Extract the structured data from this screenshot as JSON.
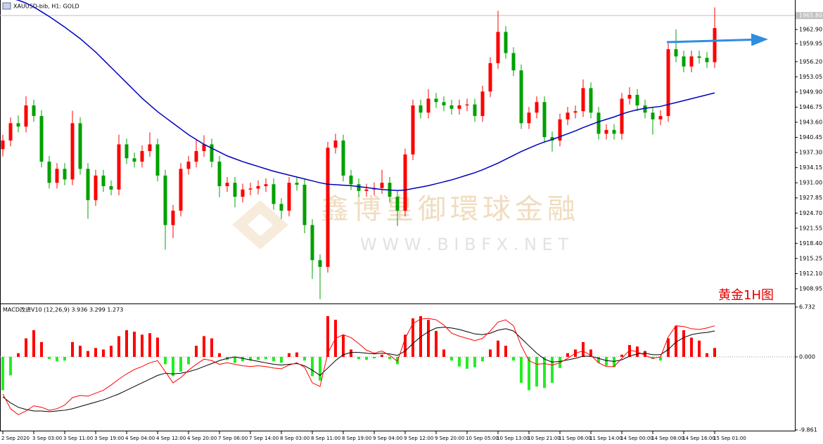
{
  "chart_data": [
    {
      "type": "candlestick",
      "title": "XAUUSD-bib, H1: GOLD",
      "annotation": "黄金1H图",
      "watermark": [
        "鑫博皇御環球金融",
        "W W W . B I B F X . N E T"
      ],
      "ylim": [
        1905.88,
        1969.04
      ],
      "yticks": [
        {
          "value": 1962.9,
          "label": "1962.90"
        },
        1959.95,
        {
          "value": 1956.2,
          "label": "1956.20"
        },
        1953.05,
        {
          "value": 1949.9,
          "label": "1949.90"
        },
        1946.75,
        {
          "value": 1943.6,
          "label": "1943.60"
        },
        1940.45,
        {
          "value": 1937.3,
          "label": "1937.30"
        },
        1934.15,
        {
          "value": 1931,
          "label": "1931.00"
        },
        1927.85,
        {
          "value": 1924.7,
          "label": "1924.70"
        },
        1921.55,
        {
          "value": 1918.4,
          "label": "1918.40"
        },
        1915.25,
        {
          "value": 1912.1,
          "label": "1912.10"
        },
        1908.95
      ],
      "current_price": {
        "value": 1965.8,
        "label": "1965.80"
      },
      "up_color": "#ff0000",
      "down_color": "#00a000",
      "xlabels": [
        "2 Sep 2020",
        "3 Sep 03:00",
        "3 Sep 11:00",
        "3 Sep 19:00",
        "4 Sep 04:00",
        "4 Sep 12:00",
        "4 Sep 20:00",
        "7 Sep 06:00",
        "7 Sep 14:00",
        "8 Sep 03:00",
        "8 Sep 11:00",
        "8 Sep 19:00",
        "9 Sep 04:00",
        "9 Sep 12:00",
        "9 Sep 20:00",
        "10 Sep 05:00",
        "10 Sep 13:00",
        "10 Sep 21:00",
        "11 Sep 06:00",
        "11 Sep 14:00",
        "14 Sep 00:00",
        "14 Sep 08:00",
        "14 Sep 16:00",
        "15 Sep 01:00"
      ],
      "candles": [
        [
          1938.0,
          1941.0,
          1936.5,
          1939.8
        ],
        [
          1939.8,
          1944.6,
          1938.6,
          1943.4
        ],
        [
          1943.4,
          1945.0,
          1941.5,
          1942.7
        ],
        [
          1942.7,
          1949.0,
          1941.5,
          1947.1
        ],
        [
          1947.1,
          1948.3,
          1943.7,
          1944.9
        ],
        [
          1944.9,
          1946.1,
          1934.2,
          1935.4
        ],
        [
          1935.4,
          1936.6,
          1929.8,
          1931.0
        ],
        [
          1931.0,
          1935.1,
          1929.8,
          1933.9
        ],
        [
          1933.9,
          1935.1,
          1930.5,
          1931.7
        ],
        [
          1931.7,
          1946.0,
          1930.5,
          1943.4
        ],
        [
          1943.4,
          1944.6,
          1932.7,
          1933.9
        ],
        [
          1933.9,
          1935.1,
          1923.5,
          1927.4
        ],
        [
          1927.4,
          1933.7,
          1926.2,
          1932.5
        ],
        [
          1932.5,
          1933.7,
          1929.1,
          1930.3
        ],
        [
          1930.3,
          1931.5,
          1928.4,
          1929.6
        ],
        [
          1929.6,
          1941.0,
          1928.4,
          1939.0
        ],
        [
          1939.0,
          1940.2,
          1934.9,
          1936.1
        ],
        [
          1936.1,
          1937.3,
          1934.2,
          1935.4
        ],
        [
          1935.4,
          1938.8,
          1934.2,
          1937.6
        ],
        [
          1937.6,
          1941.5,
          1936.4,
          1939.0
        ],
        [
          1939.0,
          1940.2,
          1931.3,
          1932.5
        ],
        [
          1932.5,
          1933.7,
          1917.1,
          1922.2
        ],
        [
          1922.2,
          1926.4,
          1919.5,
          1925.2
        ],
        [
          1925.2,
          1935.1,
          1924.0,
          1933.9
        ],
        [
          1933.9,
          1936.6,
          1932.7,
          1935.4
        ],
        [
          1935.4,
          1940.0,
          1934.2,
          1937.6
        ],
        [
          1937.6,
          1940.9,
          1936.4,
          1939.0
        ],
        [
          1939.0,
          1940.2,
          1934.2,
          1935.4
        ],
        [
          1935.4,
          1936.6,
          1928.0,
          1930.3
        ],
        [
          1930.3,
          1932.2,
          1929.1,
          1931.0
        ],
        [
          1931.0,
          1932.2,
          1925.9,
          1928.1
        ],
        [
          1928.1,
          1930.8,
          1926.9,
          1929.6
        ],
        [
          1929.6,
          1931.0,
          1928.4,
          1929.8
        ],
        [
          1929.8,
          1931.5,
          1928.6,
          1930.3
        ],
        [
          1930.3,
          1931.9,
          1929.1,
          1930.7
        ],
        [
          1930.7,
          1931.9,
          1925.4,
          1926.6
        ],
        [
          1926.6,
          1927.8,
          1923.5,
          1925.2
        ],
        [
          1925.2,
          1932.2,
          1924.0,
          1931.0
        ],
        [
          1931.0,
          1932.2,
          1929.4,
          1930.6
        ],
        [
          1930.6,
          1931.8,
          1920.5,
          1922.2
        ],
        [
          1922.2,
          1923.4,
          1911.0,
          1914.9
        ],
        [
          1914.9,
          1916.1,
          1906.8,
          1913.5
        ],
        [
          1913.5,
          1939.5,
          1912.3,
          1938.3
        ],
        [
          1938.3,
          1941.2,
          1937.1,
          1939.8
        ],
        [
          1939.8,
          1941.0,
          1931.3,
          1932.5
        ],
        [
          1932.5,
          1933.7,
          1929.5,
          1930.7
        ],
        [
          1930.7,
          1931.9,
          1928.1,
          1929.3
        ],
        [
          1929.3,
          1930.8,
          1928.1,
          1929.6
        ],
        [
          1929.6,
          1931.1,
          1928.4,
          1929.9
        ],
        [
          1929.9,
          1933.7,
          1928.7,
          1931.0
        ],
        [
          1931.0,
          1932.2,
          1926.9,
          1928.1
        ],
        [
          1928.1,
          1929.3,
          1922.0,
          1925.2
        ],
        [
          1925.2,
          1938.1,
          1924.0,
          1936.9
        ],
        [
          1936.9,
          1948.3,
          1935.7,
          1947.1
        ],
        [
          1947.1,
          1948.3,
          1944.4,
          1945.6
        ],
        [
          1945.6,
          1950.5,
          1944.4,
          1948.5
        ],
        [
          1948.5,
          1949.7,
          1946.6,
          1947.8
        ],
        [
          1947.8,
          1949.0,
          1945.9,
          1947.1
        ],
        [
          1947.1,
          1948.3,
          1945.2,
          1946.4
        ],
        [
          1946.4,
          1948.3,
          1945.2,
          1947.1
        ],
        [
          1947.1,
          1948.5,
          1945.9,
          1947.3
        ],
        [
          1947.3,
          1948.5,
          1943.7,
          1944.9
        ],
        [
          1944.9,
          1951.2,
          1943.7,
          1950.0
        ],
        [
          1950.0,
          1957.1,
          1948.8,
          1955.9
        ],
        [
          1955.9,
          1966.8,
          1954.7,
          1962.4
        ],
        [
          1962.4,
          1963.6,
          1956.8,
          1958.0
        ],
        [
          1958.0,
          1959.2,
          1953.2,
          1954.4
        ],
        [
          1954.4,
          1955.6,
          1942.2,
          1943.4
        ],
        [
          1943.4,
          1946.8,
          1942.2,
          1945.6
        ],
        [
          1945.6,
          1949.0,
          1944.4,
          1947.8
        ],
        [
          1947.8,
          1949.0,
          1939.3,
          1940.5
        ],
        [
          1940.5,
          1941.7,
          1937.5,
          1939.8
        ],
        [
          1939.8,
          1945.4,
          1938.6,
          1944.2
        ],
        [
          1944.2,
          1946.8,
          1943.0,
          1945.6
        ],
        [
          1945.6,
          1947.1,
          1944.4,
          1945.9
        ],
        [
          1945.9,
          1952.5,
          1944.7,
          1950.7
        ],
        [
          1950.7,
          1951.9,
          1944.4,
          1945.6
        ],
        [
          1945.6,
          1946.8,
          1940.0,
          1941.2
        ],
        [
          1941.2,
          1943.2,
          1940.0,
          1942.0
        ],
        [
          1942.0,
          1943.2,
          1940.0,
          1941.2
        ],
        [
          1941.2,
          1949.7,
          1940.0,
          1948.5
        ],
        [
          1948.5,
          1950.9,
          1947.3,
          1949.3
        ],
        [
          1949.3,
          1950.5,
          1945.9,
          1947.1
        ],
        [
          1947.1,
          1948.3,
          1944.4,
          1945.6
        ],
        [
          1945.6,
          1946.8,
          1941.0,
          1944.2
        ],
        [
          1944.2,
          1946.1,
          1943.0,
          1944.9
        ],
        [
          1944.9,
          1960.0,
          1943.7,
          1958.8
        ],
        [
          1958.8,
          1962.9,
          1956.1,
          1957.3
        ],
        [
          1957.3,
          1958.5,
          1954.0,
          1955.2
        ],
        [
          1955.2,
          1958.5,
          1954.0,
          1957.3
        ],
        [
          1957.3,
          1958.5,
          1955.8,
          1957.0
        ],
        [
          1957.0,
          1958.2,
          1954.9,
          1956.1
        ],
        [
          1956.1,
          1967.5,
          1954.9,
          1963.2
        ]
      ],
      "series": [
        {
          "color": "#0000c0",
          "values": [
            1969.8,
            1969.4,
            1969.0,
            1968.4,
            1967.6,
            1966.6,
            1965.6,
            1964.5,
            1963.4,
            1962.2,
            1961.0,
            1959.6,
            1958.2,
            1956.6,
            1955.0,
            1953.4,
            1951.8,
            1950.2,
            1948.6,
            1947.2,
            1945.8,
            1944.6,
            1943.4,
            1942.2,
            1941.0,
            1940.0,
            1939.0,
            1938.2,
            1937.4,
            1936.6,
            1936.0,
            1935.4,
            1934.9,
            1934.4,
            1933.9,
            1933.4,
            1933.0,
            1932.6,
            1932.2,
            1931.8,
            1931.4,
            1931.0,
            1930.7,
            1930.6,
            1930.5,
            1930.4,
            1930.2,
            1930.0,
            1929.8,
            1929.6,
            1929.5,
            1929.4,
            1929.5,
            1929.8,
            1930.1,
            1930.4,
            1930.8,
            1931.2,
            1931.6,
            1932.1,
            1932.6,
            1933.1,
            1933.7,
            1934.4,
            1935.1,
            1935.9,
            1936.7,
            1937.5,
            1938.2,
            1938.9,
            1939.5,
            1940.0,
            1940.6,
            1941.2,
            1941.8,
            1942.5,
            1943.1,
            1943.7,
            1944.2,
            1944.7,
            1945.3,
            1945.8,
            1946.2,
            1946.5,
            1946.7,
            1946.9,
            1947.3,
            1947.7,
            1948.1,
            1948.5,
            1948.9,
            1949.3,
            1949.7
          ]
        }
      ]
    },
    {
      "type": "macd",
      "title": "MACD改进V10 (12,26,9) 3.936 3.299 1.273",
      "ylim": [
        -9.861,
        6.732
      ],
      "yticks": [
        6.732,
        {
          "value": 0,
          "label": "0.000"
        },
        -9.861
      ],
      "positive_color": "#ff0000",
      "negative_color": "#22ee22",
      "values": [
        -4.5,
        -2.5,
        0.5,
        2.5,
        3.6,
        2.0,
        -0.3,
        -0.6,
        -0.5,
        2.0,
        1.5,
        0.8,
        1.2,
        1.0,
        1.5,
        2.8,
        3.6,
        3.4,
        3.0,
        3.2,
        2.6,
        -1.0,
        -2.6,
        -2.0,
        -1.0,
        1.5,
        2.8,
        2.5,
        0.5,
        -0.4,
        -0.8,
        -0.6,
        -0.5,
        -0.4,
        -0.3,
        -0.6,
        -0.8,
        0.5,
        0.6,
        -0.5,
        -2.6,
        -3.2,
        5.5,
        5.0,
        3.0,
        1.0,
        -0.3,
        -0.4,
        -0.2,
        0.3,
        -0.3,
        -1.0,
        3.0,
        5.2,
        5.5,
        5.0,
        3.5,
        1.0,
        -0.5,
        -1.3,
        -1.6,
        -1.4,
        -0.6,
        1.0,
        2.2,
        1.5,
        -0.5,
        -3.5,
        -4.5,
        -4.0,
        -4.2,
        -3.5,
        -1.5,
        0.5,
        1.0,
        2.0,
        1.0,
        -0.8,
        -1.2,
        -1.4,
        0.3,
        1.6,
        1.4,
        0.8,
        -0.3,
        -0.5,
        2.5,
        4.2,
        3.6,
        2.6,
        2.2,
        0.5,
        1.2
      ],
      "series": [
        {
          "color": "#000000",
          "values": [
            -5.4,
            -6.2,
            -6.8,
            -7.1,
            -7.3,
            -7.3,
            -7.4,
            -7.3,
            -7.2,
            -7.0,
            -6.7,
            -6.4,
            -6.1,
            -5.8,
            -5.4,
            -5.0,
            -4.5,
            -4.0,
            -3.5,
            -3.0,
            -2.5,
            -2.2,
            -2.3,
            -2.2,
            -2.0,
            -1.7,
            -1.3,
            -0.9,
            -0.5,
            -0.2,
            0.0,
            -0.2,
            -0.4,
            -0.6,
            -0.8,
            -1.0,
            -1.1,
            -1.0,
            -0.9,
            -1.2,
            -1.8,
            -2.5,
            -1.5,
            -0.5,
            0.3,
            0.6,
            0.6,
            0.5,
            0.4,
            0.5,
            0.4,
            0.2,
            0.8,
            1.8,
            2.7,
            3.4,
            3.9,
            4.0,
            3.9,
            3.7,
            3.4,
            3.1,
            3.0,
            3.2,
            3.6,
            3.8,
            3.5,
            2.5,
            1.5,
            0.5,
            -0.3,
            -0.7,
            -0.6,
            -0.4,
            -0.2,
            0.1,
            0.1,
            -0.2,
            -0.5,
            -0.6,
            -0.4,
            0.1,
            0.4,
            0.5,
            0.3,
            0.3,
            1.0,
            2.0,
            2.6,
            3.0,
            3.2,
            3.3,
            3.5
          ]
        },
        {
          "color": "#ff0000",
          "values": [
            -5.0,
            -7.0,
            -7.8,
            -7.3,
            -6.6,
            -6.8,
            -7.2,
            -7.0,
            -6.5,
            -5.5,
            -5.2,
            -5.3,
            -4.9,
            -4.5,
            -3.8,
            -3.0,
            -2.3,
            -1.7,
            -1.3,
            -0.8,
            -0.5,
            -2.0,
            -3.5,
            -2.8,
            -1.8,
            -1.0,
            -0.3,
            -0.5,
            -1.0,
            -0.8,
            -1.0,
            -1.2,
            -1.3,
            -1.2,
            -1.3,
            -1.5,
            -1.6,
            -1.1,
            -0.8,
            -1.4,
            -3.5,
            -4.0,
            0.5,
            2.5,
            3.0,
            2.6,
            1.8,
            0.9,
            0.5,
            0.8,
            0.2,
            -0.6,
            2.5,
            4.5,
            5.1,
            5.2,
            5.0,
            4.3,
            3.2,
            2.8,
            2.5,
            2.2,
            2.5,
            3.5,
            4.7,
            5.0,
            4.2,
            1.5,
            -0.5,
            -1.0,
            -0.9,
            -1.1,
            -0.8,
            -0.2,
            0.5,
            0.8,
            0.2,
            -0.8,
            -1.3,
            -1.3,
            -0.2,
            0.9,
            0.7,
            0.2,
            -0.2,
            0.0,
            2.7,
            4.2,
            4.1,
            3.8,
            3.7,
            3.9,
            4.2
          ]
        }
      ]
    }
  ]
}
